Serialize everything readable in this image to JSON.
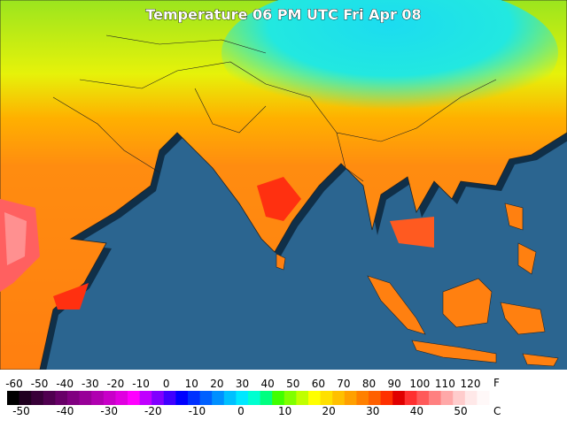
{
  "title": "Temperature 06 PM UTC Fri Apr 08",
  "legend": {
    "fahrenheit": {
      "unit": "F",
      "labels": [
        -60,
        -50,
        -40,
        -30,
        -20,
        -10,
        0,
        10,
        20,
        30,
        40,
        50,
        60,
        70,
        80,
        90,
        100,
        110,
        120
      ]
    },
    "celsius": {
      "unit": "C",
      "labels": [
        -50,
        -40,
        -30,
        -20,
        -10,
        0,
        10,
        20,
        30,
        40,
        50
      ]
    }
  }
}
